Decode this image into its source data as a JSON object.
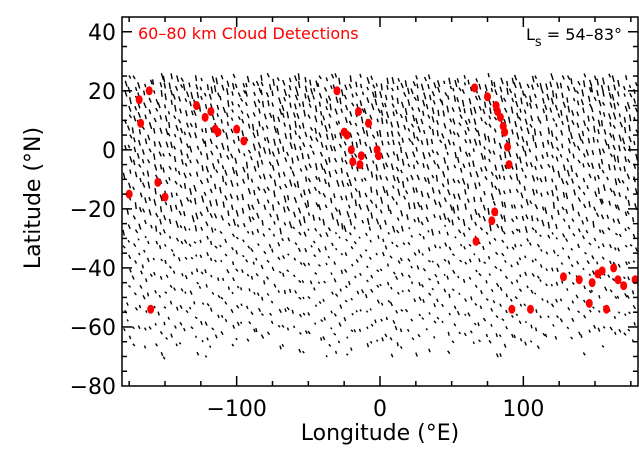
{
  "chart_data": {
    "type": "scatter",
    "title": "60–80 km Cloud Detections",
    "annotation": {
      "prefix": "L",
      "subscript": "s",
      "suffix": " = 54–83°"
    },
    "xlabel": "Longitude (°E)",
    "ylabel": "Latitude (°N)",
    "xlim": [
      -180,
      180
    ],
    "ylim": [
      -80,
      45
    ],
    "x_ticks": [
      -100,
      0,
      100
    ],
    "x_tick_labels": [
      "−100",
      "0",
      "100"
    ],
    "y_ticks": [
      40,
      20,
      0,
      -20,
      -40,
      -60,
      -80
    ],
    "y_tick_labels": [
      "40",
      "20",
      "0",
      "−20",
      "−40",
      "−60",
      "−80"
    ],
    "grid": false,
    "colors": {
      "observations": "#000000",
      "detections": "#ff0000"
    },
    "series": [
      {
        "marker": "short-tick",
        "color": "#000000",
        "coverage": {
          "lon_range": [
            -180,
            180
          ],
          "lat_range": [
            -72,
            26
          ],
          "note": "dense observation footprints"
        }
      },
      {
        "marker": "dot",
        "color": "#ff0000",
        "points": [
          [
            -175,
            -15
          ],
          [
            -168,
            17
          ],
          [
            -167,
            9
          ],
          [
            -161,
            20
          ],
          [
            -155,
            -11
          ],
          [
            -150,
            -16
          ],
          [
            -160,
            -54
          ],
          [
            -128,
            15
          ],
          [
            -122,
            11
          ],
          [
            -118,
            13
          ],
          [
            -115,
            7
          ],
          [
            -113,
            6
          ],
          [
            -100,
            7
          ],
          [
            -95,
            3
          ],
          [
            -30,
            20
          ],
          [
            -25,
            6
          ],
          [
            -23,
            5
          ],
          [
            -20,
            0
          ],
          [
            -19,
            -4
          ],
          [
            -15,
            13
          ],
          [
            -14,
            -5
          ],
          [
            -13,
            -2
          ],
          [
            -8,
            9
          ],
          [
            -2,
            0
          ],
          [
            -1,
            -2
          ],
          [
            66,
            21
          ],
          [
            67,
            -31
          ],
          [
            75,
            18
          ],
          [
            78,
            -24
          ],
          [
            80,
            -21
          ],
          [
            81,
            15
          ],
          [
            82,
            13
          ],
          [
            84,
            11
          ],
          [
            86,
            8
          ],
          [
            87,
            6
          ],
          [
            89,
            1
          ],
          [
            90,
            -5
          ],
          [
            92,
            -54
          ],
          [
            105,
            -54
          ],
          [
            128,
            -43
          ],
          [
            139,
            -44
          ],
          [
            146,
            -52
          ],
          [
            148,
            -45
          ],
          [
            152,
            -42
          ],
          [
            155,
            -41
          ],
          [
            158,
            -54
          ],
          [
            163,
            -40
          ],
          [
            166,
            -44
          ],
          [
            170,
            -46
          ],
          [
            178,
            -44
          ]
        ]
      }
    ]
  }
}
